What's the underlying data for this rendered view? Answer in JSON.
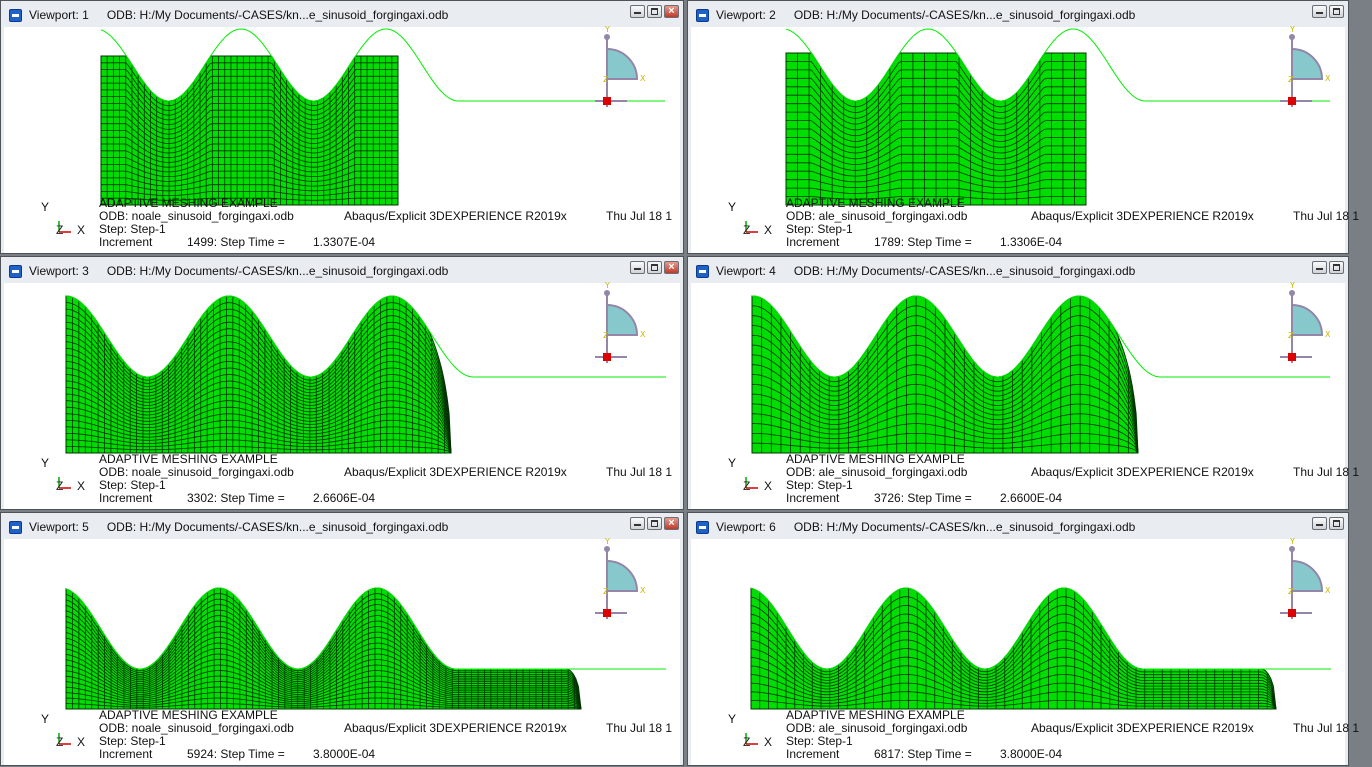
{
  "viewports": [
    {
      "label": "Viewport: 1",
      "odb_path": "ODB: H:/My Documents/-CASES/kn...e_sinusoid_forgingaxi.odb",
      "title": "ADAPTIVE MESHING EXAMPLE",
      "odb_line": "ODB: noale_sinusoid_forgingaxi.odb",
      "solver": "Abaqus/Explicit 3DEXPERIENCE R2019x",
      "date": "Thu Jul 18 1",
      "step": "Step: Step-1",
      "increment_label": "Increment",
      "increment": "1499: Step Time =",
      "step_time": "1.3307E-04",
      "closable": true
    },
    {
      "label": "Viewport: 2",
      "odb_path": "ODB: H:/My Documents/-CASES/kn...e_sinusoid_forgingaxi.odb",
      "title": "ADAPTIVE MESHING EXAMPLE",
      "odb_line": "ODB: ale_sinusoid_forgingaxi.odb",
      "solver": "Abaqus/Explicit 3DEXPERIENCE R2019x",
      "date": "Thu Jul 18 1",
      "step": "Step: Step-1",
      "increment_label": "Increment",
      "increment": "1789: Step Time =",
      "step_time": "1.3306E-04",
      "closable": false
    },
    {
      "label": "Viewport: 3",
      "odb_path": "ODB: H:/My Documents/-CASES/kn...e_sinusoid_forgingaxi.odb",
      "title": "ADAPTIVE MESHING EXAMPLE",
      "odb_line": "ODB: noale_sinusoid_forgingaxi.odb",
      "solver": "Abaqus/Explicit 3DEXPERIENCE R2019x",
      "date": "Thu Jul 18 1",
      "step": "Step: Step-1",
      "increment_label": "Increment",
      "increment": "3302: Step Time =",
      "step_time": "2.6606E-04",
      "closable": true
    },
    {
      "label": "Viewport: 4",
      "odb_path": "ODB: H:/My Documents/-CASES/kn...e_sinusoid_forgingaxi.odb",
      "title": "ADAPTIVE MESHING EXAMPLE",
      "odb_line": "ODB: ale_sinusoid_forgingaxi.odb",
      "solver": "Abaqus/Explicit 3DEXPERIENCE R2019x",
      "date": "Thu Jul 18 1",
      "step": "Step: Step-1",
      "increment_label": "Increment",
      "increment": "3726: Step Time =",
      "step_time": "2.6600E-04",
      "closable": false
    },
    {
      "label": "Viewport: 5",
      "odb_path": "ODB: H:/My Documents/-CASES/kn...e_sinusoid_forgingaxi.odb",
      "title": "ADAPTIVE MESHING EXAMPLE",
      "odb_line": "ODB: noale_sinusoid_forgingaxi.odb",
      "solver": "Abaqus/Explicit 3DEXPERIENCE R2019x",
      "date": "Thu Jul 18 1",
      "step": "Step: Step-1",
      "increment_label": "Increment",
      "increment": "5924: Step Time =",
      "step_time": "3.8000E-04",
      "closable": true
    },
    {
      "label": "Viewport: 6",
      "odb_path": "ODB: H:/My Documents/-CASES/kn...e_sinusoid_forgingaxi.odb",
      "title": "ADAPTIVE MESHING EXAMPLE",
      "odb_line": "ODB: ale_sinusoid_forgingaxi.odb",
      "solver": "Abaqus/Explicit 3DEXPERIENCE R2019x",
      "date": "Thu Jul 18 1",
      "step": "Step: Step-1",
      "increment_label": "Increment",
      "increment": "6817: Step Time =",
      "step_time": "3.8000E-04",
      "closable": false
    }
  ],
  "triad": {
    "y": "Y",
    "x": "X",
    "z": "Z"
  },
  "colors": {
    "mesh_fill": "#00dd00",
    "mesh_line": "#003300",
    "die_curve": "#00ee00",
    "triad_fill": "#86c8cc",
    "triad_axis": "#9386a8",
    "origin": "#dd0000",
    "triad_label": "#c8b400"
  }
}
